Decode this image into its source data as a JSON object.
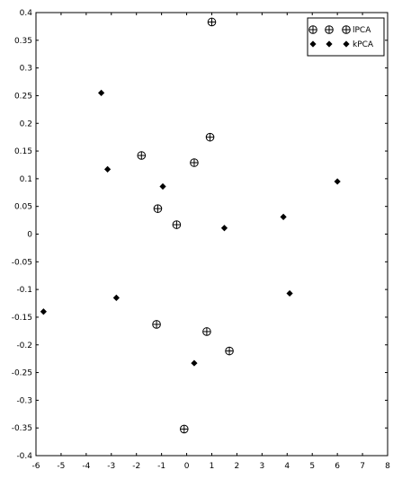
{
  "chart_data": {
    "type": "scatter",
    "title": "",
    "xlabel": "",
    "ylabel": "",
    "xlim": [
      -6,
      8
    ],
    "ylim": [
      -0.4,
      0.4
    ],
    "xticks": [
      "-6",
      "-5",
      "-4",
      "-3",
      "-2",
      "-1",
      "0",
      "1",
      "2",
      "3",
      "4",
      "5",
      "6",
      "7",
      "8"
    ],
    "yticks": [
      "0.4",
      "0.35",
      "0.3",
      "0.25",
      "0.2",
      "0.15",
      "0.1",
      "0.05",
      "0",
      "-0.05",
      "-0.1",
      "-0.15",
      "-0.2",
      "-0.25",
      "-0.3",
      "-0.35",
      "-0.4"
    ],
    "grid": false,
    "legend_position": "top-right",
    "series": [
      {
        "name": "lPCA",
        "marker": "circle-plus",
        "color": "#000000",
        "points": [
          {
            "x": 1.0,
            "y": 0.383
          },
          {
            "x": 0.93,
            "y": 0.175
          },
          {
            "x": -1.8,
            "y": 0.142
          },
          {
            "x": 0.3,
            "y": 0.129
          },
          {
            "x": -1.15,
            "y": 0.046
          },
          {
            "x": -0.4,
            "y": 0.017
          },
          {
            "x": -1.2,
            "y": -0.163
          },
          {
            "x": 0.8,
            "y": -0.176
          },
          {
            "x": 1.7,
            "y": -0.211
          },
          {
            "x": -0.1,
            "y": -0.352
          }
        ]
      },
      {
        "name": "kPCA",
        "marker": "diamond",
        "color": "#000000",
        "points": [
          {
            "x": -3.4,
            "y": 0.255
          },
          {
            "x": -3.15,
            "y": 0.117
          },
          {
            "x": -0.95,
            "y": 0.086
          },
          {
            "x": 6.0,
            "y": 0.095
          },
          {
            "x": 3.85,
            "y": 0.031
          },
          {
            "x": 1.5,
            "y": 0.011
          },
          {
            "x": -2.8,
            "y": -0.115
          },
          {
            "x": 4.1,
            "y": -0.107
          },
          {
            "x": -5.7,
            "y": -0.14
          },
          {
            "x": 0.3,
            "y": -0.233
          }
        ]
      }
    ]
  }
}
